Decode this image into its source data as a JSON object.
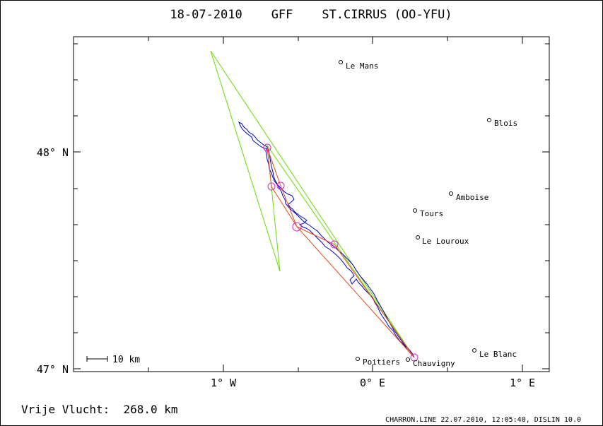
{
  "title": "18-07-2010    GFF    ST.CIRRUS (OO-YFU)",
  "axes": {
    "lat_ticks": [
      {
        "value": 47,
        "label": "47° N"
      },
      {
        "value": 48,
        "label": "48° N"
      }
    ],
    "lon_ticks": [
      {
        "value": -1,
        "label": "1° W"
      },
      {
        "value": 0,
        "label": "0° E"
      },
      {
        "value": 1,
        "label": "1° E"
      }
    ]
  },
  "scale_bar": {
    "label": "10 km"
  },
  "distance": "Vrije Vlucht:  268.0 km",
  "footer": "CHARRON.LINE 22.07.2010, 12:05:40, DISLIN 10.0",
  "colors": {
    "track": "#0000cc",
    "task": "#66dd00",
    "optimized": "#dd2222",
    "turnpoint": "#dd22cc"
  },
  "cities": [
    {
      "name": "Le Mans",
      "lon": -0.16,
      "lat": 48.41
    },
    {
      "name": "Blois",
      "lon": 0.82,
      "lat": 48.15
    },
    {
      "name": "Amboise",
      "lon": 0.58,
      "lat": 47.79
    },
    {
      "name": "Tours",
      "lon": 0.34,
      "lat": 47.72
    },
    {
      "name": "Le Louroux",
      "lon": 0.35,
      "lat": 47.61
    },
    {
      "name": "Poitiers",
      "lon": -0.04,
      "lat": 47.05
    },
    {
      "name": "Chauvigny",
      "lon": 0.29,
      "lat": 47.04
    },
    {
      "name": "Le Blanc",
      "lon": 0.73,
      "lat": 47.08
    }
  ]
}
